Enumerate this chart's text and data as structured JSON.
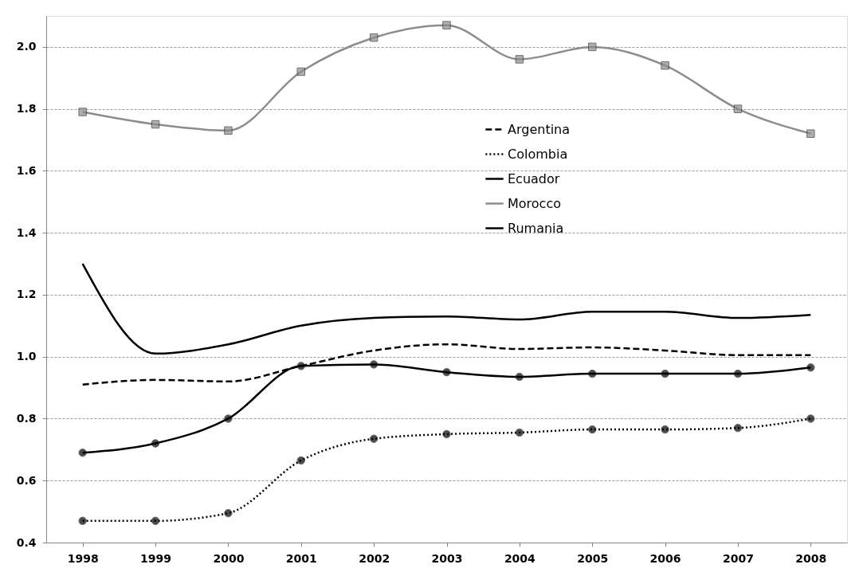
{
  "chart_data": {
    "type": "line",
    "categories": [
      "1998",
      "1999",
      "2000",
      "2001",
      "2002",
      "2003",
      "2004",
      "2005",
      "2006",
      "2007",
      "2008"
    ],
    "ylim": [
      0.4,
      2.1
    ],
    "yticks": [
      {
        "value": 0.4,
        "label": "0.4"
      },
      {
        "value": 0.6,
        "label": "0.6"
      },
      {
        "value": 0.8,
        "label": "0.8"
      },
      {
        "value": 1.0,
        "label": "1.0"
      },
      {
        "value": 1.2,
        "label": "1.2"
      },
      {
        "value": 1.4,
        "label": "1.4"
      },
      {
        "value": 1.6,
        "label": "1.6"
      },
      {
        "value": 1.8,
        "label": "1.8"
      },
      {
        "value": 2.0,
        "label": "2.0"
      }
    ],
    "grid": "y",
    "legend": "top right",
    "series": [
      {
        "name": "Argentina",
        "color": "#000000",
        "line_style": "dashed",
        "marker": "none",
        "values": [
          0.91,
          0.925,
          0.92,
          0.97,
          1.02,
          1.04,
          1.025,
          1.03,
          1.02,
          1.005,
          1.005
        ]
      },
      {
        "name": "Colombia",
        "color": "#000000",
        "line_style": "dotted",
        "marker": "circle",
        "values": [
          0.47,
          0.47,
          0.495,
          0.665,
          0.735,
          0.75,
          0.755,
          0.765,
          0.765,
          0.77,
          0.8
        ]
      },
      {
        "name": "Ecuador",
        "color": "#000000",
        "line_style": "solid",
        "marker": "circle",
        "values": [
          0.69,
          0.72,
          0.8,
          0.97,
          0.975,
          0.95,
          0.935,
          0.945,
          0.945,
          0.945,
          0.965
        ]
      },
      {
        "name": "Morocco",
        "color": "#8c8c8c",
        "line_style": "solid",
        "marker": "square",
        "values": [
          1.79,
          1.75,
          1.73,
          1.92,
          2.03,
          2.07,
          1.96,
          2.0,
          1.94,
          1.8,
          1.72
        ]
      },
      {
        "name": "Rumania",
        "color": "#000000",
        "line_style": "solid",
        "marker": "none",
        "values": [
          1.3,
          1.01,
          1.04,
          1.1,
          1.125,
          1.13,
          1.12,
          1.145,
          1.145,
          1.125,
          1.135
        ]
      }
    ]
  }
}
